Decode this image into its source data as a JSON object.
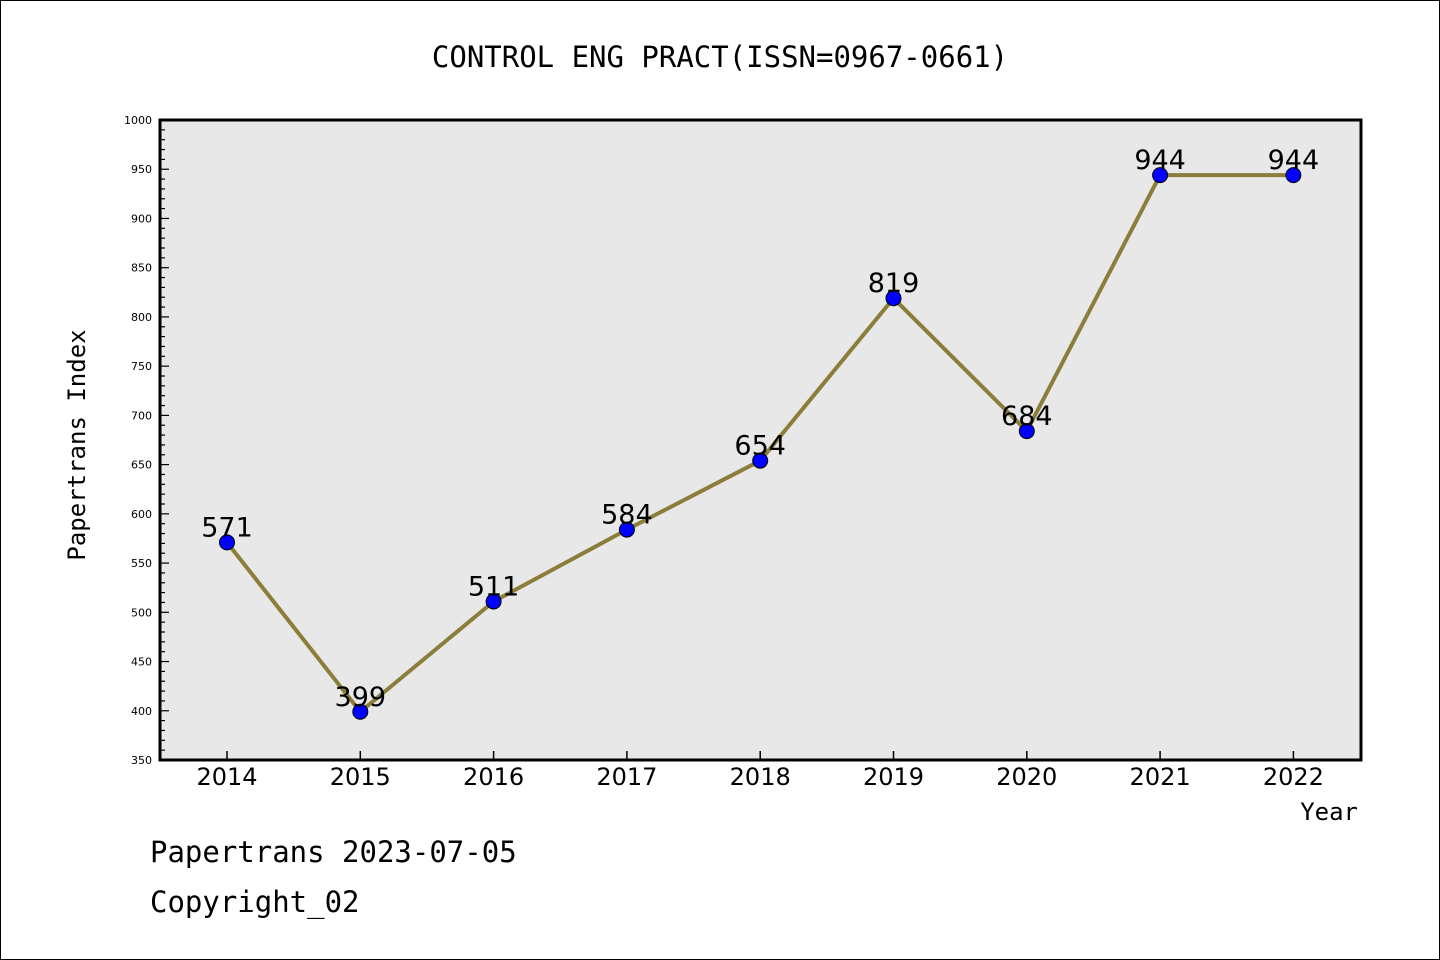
{
  "chart_data": {
    "type": "line",
    "title": "CONTROL ENG PRACT(ISSN=0967-0661)",
    "xlabel": "Year",
    "ylabel": "Papertrans Index",
    "categories": [
      "2014",
      "2015",
      "2016",
      "2017",
      "2018",
      "2019",
      "2020",
      "2021",
      "2022"
    ],
    "series": [
      {
        "values": [
          571,
          399,
          511,
          584,
          654,
          819,
          684,
          944,
          944
        ]
      }
    ],
    "data_labels": [
      "571",
      "399",
      "511",
      "584",
      "654",
      "819",
      "684",
      "944",
      "944"
    ],
    "ylim": [
      350,
      1000
    ],
    "yticks": [
      350,
      400,
      450,
      500,
      550,
      600,
      650,
      700,
      750,
      800,
      850,
      900,
      950,
      1000
    ],
    "grid": false,
    "colors": {
      "line": "#8b7d3a",
      "marker": "#0000ff",
      "plot_background": "#e8e8e8"
    }
  },
  "footer": {
    "line1": "Papertrans 2023-07-05",
    "line2": "Copyright_02"
  }
}
